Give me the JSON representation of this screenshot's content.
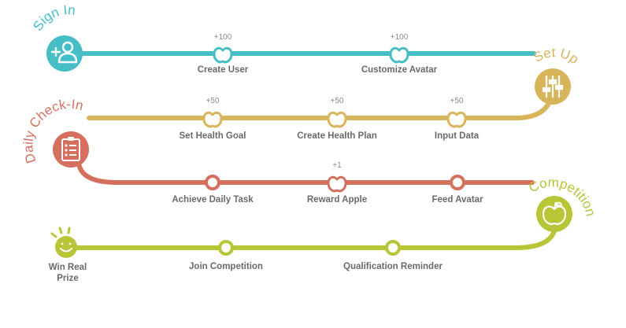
{
  "colors": {
    "signin": "#45bec8",
    "setup": "#d8b45a",
    "checkin": "#d5705f",
    "competition": "#b7c536",
    "label": "#6a6a6a",
    "points": "#8a8a8a"
  },
  "stages": {
    "signin": {
      "title": "Sign In",
      "icon": "add-user-icon",
      "steps": [
        {
          "label": "Create User",
          "points": "+100",
          "marker": "apple"
        },
        {
          "label": "Customize Avatar",
          "points": "+100",
          "marker": "apple"
        }
      ]
    },
    "setup": {
      "title": "Set Up",
      "icon": "sliders-icon",
      "steps": [
        {
          "label": "Set Health Goal",
          "points": "+50",
          "marker": "apple"
        },
        {
          "label": "Create Health Plan",
          "points": "+50",
          "marker": "apple"
        },
        {
          "label": "Input Data",
          "points": "+50",
          "marker": "apple"
        }
      ]
    },
    "checkin": {
      "title": "Daily Check-In",
      "icon": "checklist-icon",
      "steps": [
        {
          "label": "Achieve Daily Task",
          "points": "",
          "marker": "circle"
        },
        {
          "label": "Reward Apple",
          "points": "+1",
          "marker": "apple"
        },
        {
          "label": "Feed Avatar",
          "points": "",
          "marker": "circle"
        }
      ]
    },
    "competition": {
      "title": "Competition",
      "icon": "apple-icon",
      "steps": [
        {
          "label": "Join Competition",
          "points": "",
          "marker": "circle"
        },
        {
          "label": "Qualification Reminder",
          "points": "",
          "marker": "circle"
        }
      ]
    }
  },
  "finish": {
    "label_line1": "Win Real",
    "label_line2": "Prize",
    "icon": "smiley-sun-icon"
  }
}
